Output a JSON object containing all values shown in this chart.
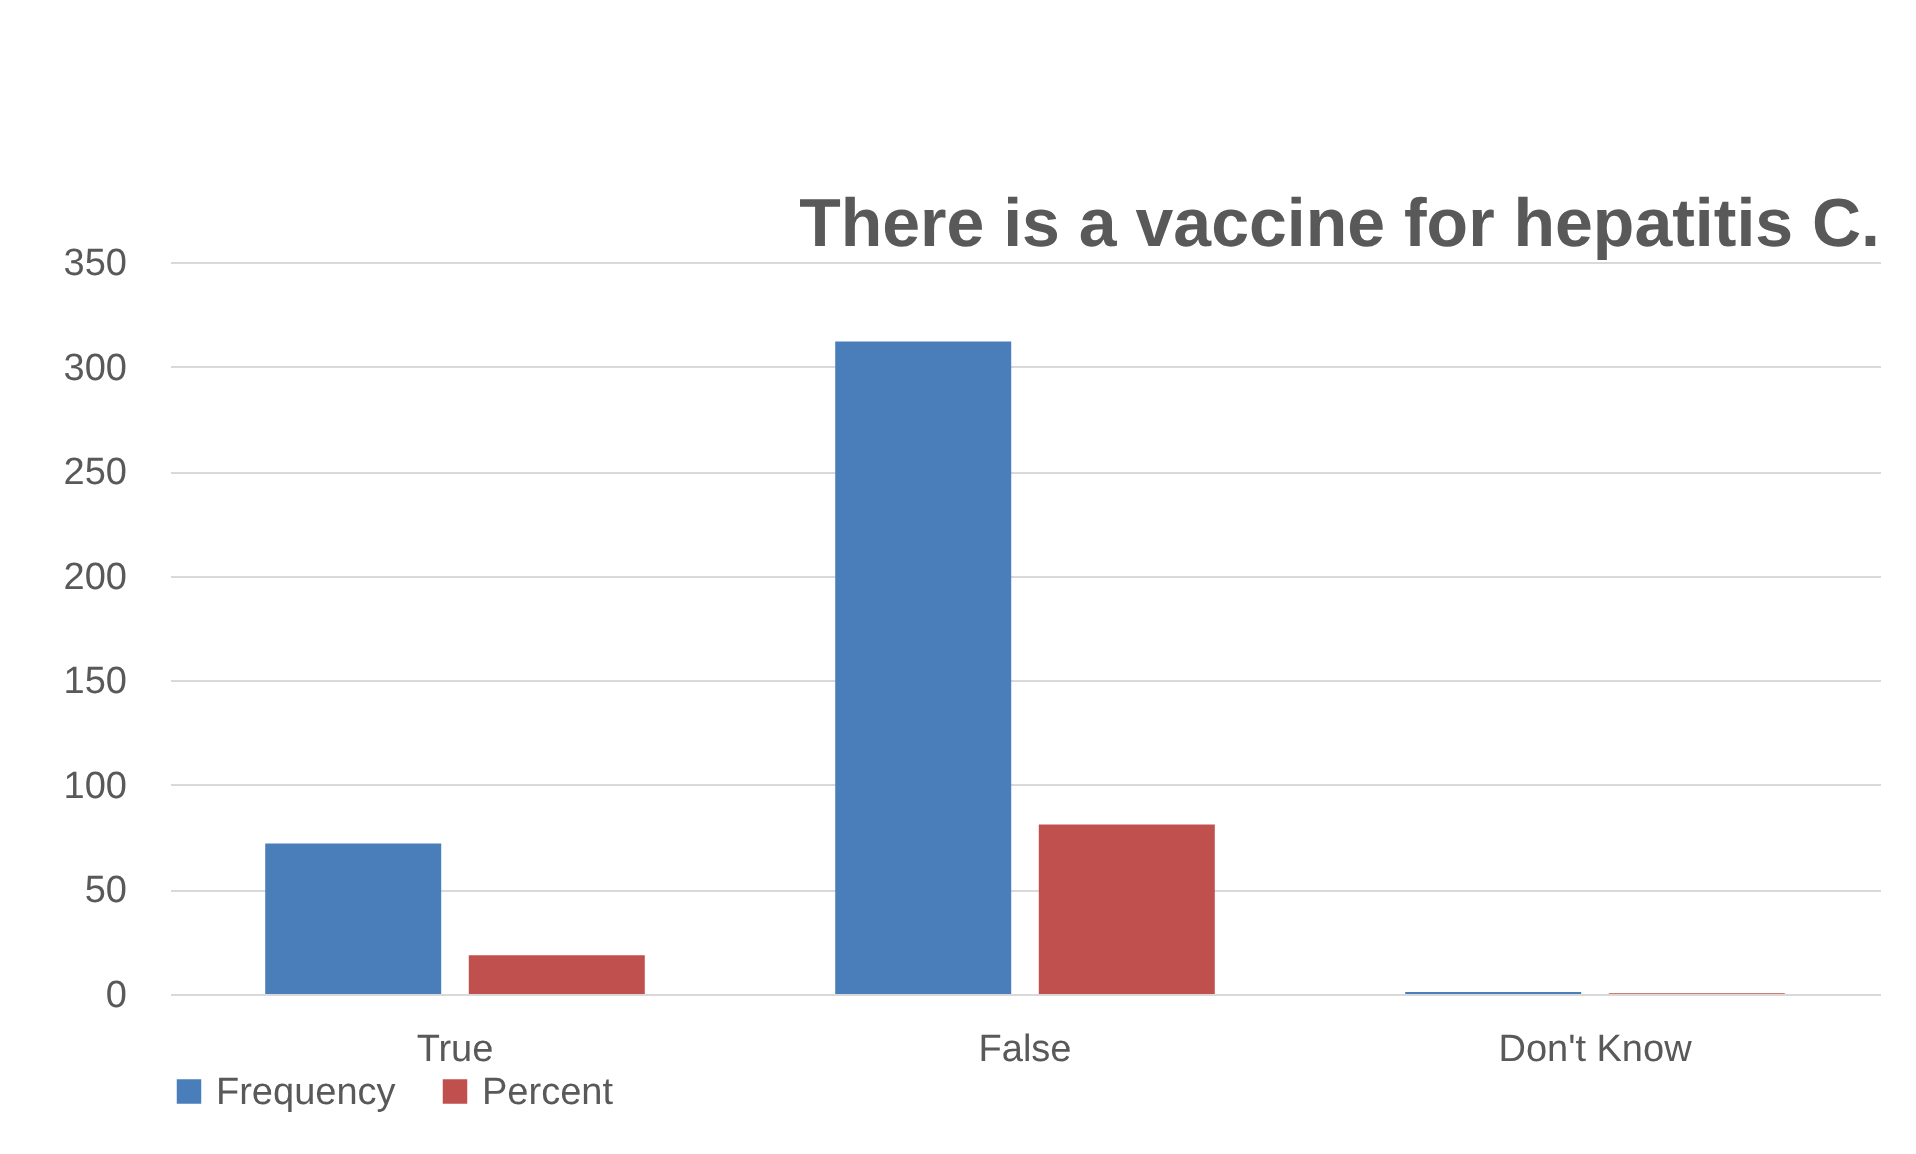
{
  "chart_data": {
    "type": "bar",
    "title": "There is a vaccine for hepatitis C.",
    "categories": [
      "True",
      "False",
      "Don't Know"
    ],
    "series": [
      {
        "name": "Frequency",
        "color": "#4a7ebb",
        "values": [
          72,
          312,
          1
        ]
      },
      {
        "name": "Percent",
        "color": "#c0504d",
        "values": [
          18.5,
          81,
          0.3
        ]
      }
    ],
    "ylim": [
      0,
      350
    ],
    "yticks": [
      0,
      50,
      100,
      150,
      200,
      250,
      300,
      350
    ],
    "grid": "y",
    "legend": "bottom"
  }
}
